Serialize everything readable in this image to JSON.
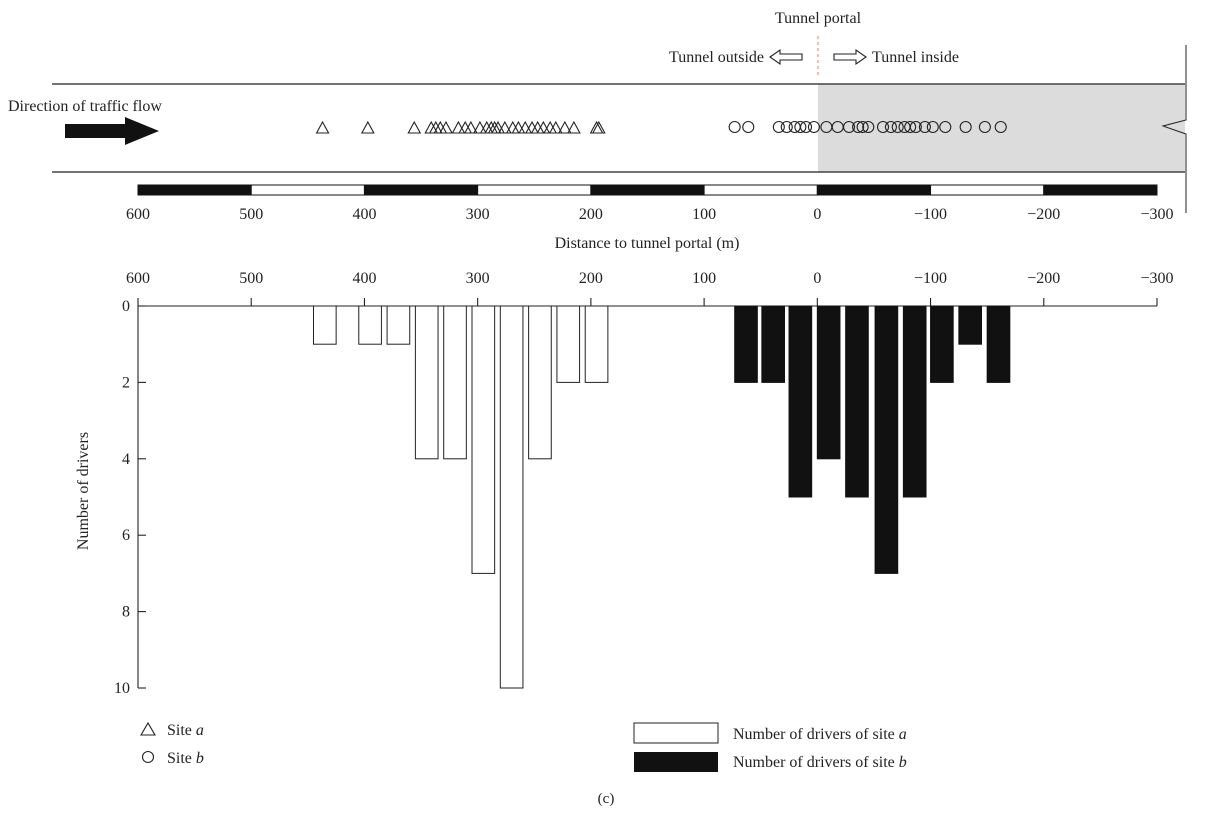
{
  "scene": {
    "portal_label": "Tunnel portal",
    "outside_label": "Tunnel outside",
    "inside_label": "Tunnel inside",
    "traffic_label": "Direction of traffic flow",
    "site_a_positions": [
      437,
      397,
      356,
      341,
      337,
      333,
      328,
      317,
      311,
      306,
      298,
      292,
      288,
      285,
      282,
      276,
      269,
      264,
      258,
      252,
      247,
      242,
      236,
      231,
      223,
      215,
      195,
      193
    ],
    "site_b_positions": [
      73,
      61,
      34,
      27,
      20,
      15,
      10,
      3,
      -8,
      -18,
      -28,
      -36,
      -40,
      -45,
      -58,
      -65,
      -71,
      -77,
      -82,
      -87,
      -95,
      -102,
      -113,
      -131,
      -148,
      -162
    ]
  },
  "chart_data": {
    "type": "bar",
    "title": "",
    "xlabel": "Distance to tunnel portal (m)",
    "ylabel": "Number of drivers",
    "xlim": [
      600,
      -300
    ],
    "ylim": [
      0,
      10
    ],
    "x_ticks": [
      600,
      500,
      400,
      300,
      200,
      100,
      0,
      -100,
      -200,
      -300
    ],
    "x_tick_labels": [
      "600",
      "500",
      "400",
      "300",
      "200",
      "100",
      "0",
      "−100",
      "−200",
      "−300"
    ],
    "y_ticks": [
      0,
      2,
      4,
      6,
      8,
      10
    ],
    "y_tick_labels": [
      "0",
      "2",
      "4",
      "6",
      "8",
      "10"
    ],
    "bar_width": 20,
    "series": [
      {
        "name": "Number of drivers of site a",
        "color": "#ffffff",
        "stroke": "#222222",
        "x": [
          435,
          395,
          370,
          345,
          320,
          295,
          270,
          245,
          220,
          195
        ],
        "values": [
          1,
          1,
          1,
          4,
          4,
          7,
          10,
          4,
          2,
          2
        ]
      },
      {
        "name": "Number of drivers of site b",
        "color": "#111111",
        "stroke": "#111111",
        "x": [
          63,
          39,
          15,
          -10,
          -35,
          -61,
          -86,
          -110,
          -135,
          -160
        ],
        "values": [
          2,
          2,
          5,
          4,
          5,
          7,
          5,
          2,
          1,
          2
        ]
      }
    ],
    "legend": {
      "placement": "bottom",
      "site_a": "Site ",
      "site_a_em": "a",
      "site_b": "Site ",
      "site_b_em": "b",
      "bars_a": "Number of drivers of site ",
      "bars_a_em": "a",
      "bars_b": "Number of drivers of site ",
      "bars_b_em": "b"
    },
    "caption": "(c)"
  }
}
